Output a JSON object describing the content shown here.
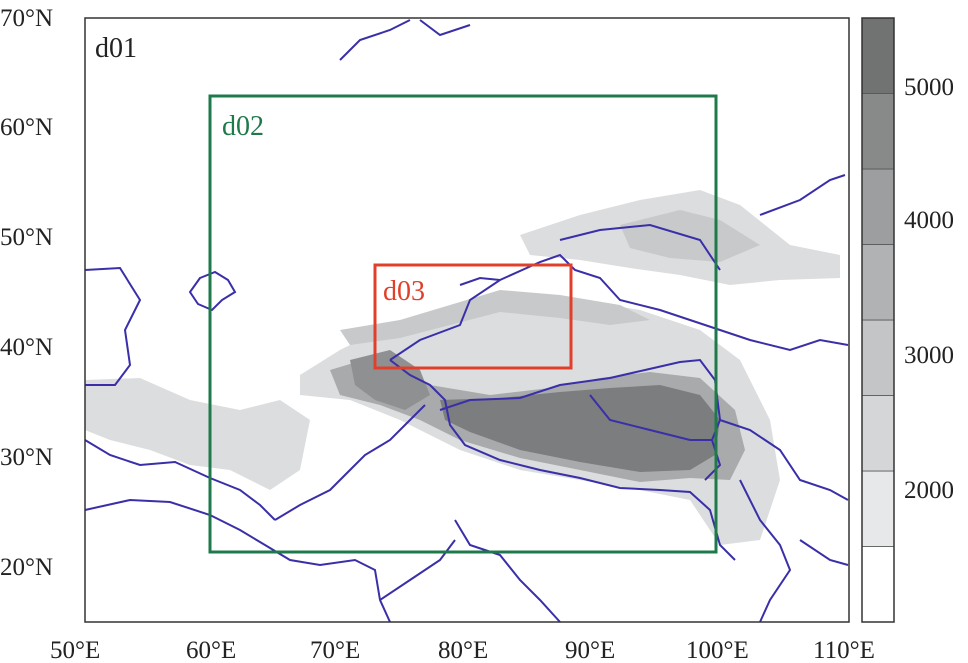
{
  "map": {
    "lat_ticks": [
      "70°N",
      "60°N",
      "50°N",
      "40°N",
      "30°N",
      "20°N"
    ],
    "lon_ticks": [
      "50°E",
      "60°E",
      "70°E",
      "80°E",
      "90°E",
      "100°E",
      "110°E"
    ],
    "colors": {
      "border": "#3a2fa8",
      "d01": "#222222",
      "d02": "#1e7a4a",
      "d03": "#e0402a"
    },
    "domains": [
      {
        "id": "d01",
        "label": "d01"
      },
      {
        "id": "d02",
        "label": "d02"
      },
      {
        "id": "d03",
        "label": "d03"
      }
    ]
  },
  "colorbar": {
    "labels": [
      "5000",
      "4000",
      "3000",
      "2000"
    ],
    "shades": [
      "#ffffff",
      "#e7e8e9",
      "#d5d6d7",
      "#c4c5c6",
      "#b1b2b3",
      "#9d9e9f",
      "#888989",
      "#717272"
    ]
  }
}
